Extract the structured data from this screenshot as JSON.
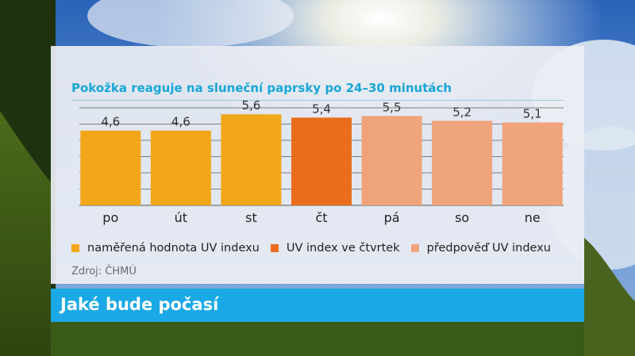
{
  "colors": {
    "measured": "#f2a61a",
    "thursday": "#e96d1c",
    "forecast": "#f0a47c",
    "title": "#17a6d8",
    "banner": "#1aa9e6"
  },
  "chart_data": {
    "type": "bar",
    "title": "Pokožka reaguje na sluneční paprsky po 24–30 minutách",
    "categories": [
      "po",
      "út",
      "st",
      "čt",
      "pá",
      "so",
      "ne"
    ],
    "values": [
      4.6,
      4.6,
      5.6,
      5.4,
      5.5,
      5.2,
      5.1
    ],
    "value_labels": [
      "4,6",
      "4,6",
      "5,6",
      "5,4",
      "5,5",
      "5,2",
      "5,1"
    ],
    "series_by_bar": [
      "measured",
      "measured",
      "measured",
      "thursday",
      "forecast",
      "forecast",
      "forecast"
    ],
    "legend": [
      {
        "key": "measured",
        "label": "naměřená hodnota UV indexu"
      },
      {
        "key": "thursday",
        "label": "UV index ve čtvrtek"
      },
      {
        "key": "forecast",
        "label": "předpověď UV indexu"
      }
    ],
    "xlabel": "",
    "ylabel": "",
    "ylim": [
      0,
      6
    ],
    "grid": true
  },
  "source": "Zdroj: ČHMÚ",
  "banner": {
    "title": "Jaké bude počasí"
  }
}
